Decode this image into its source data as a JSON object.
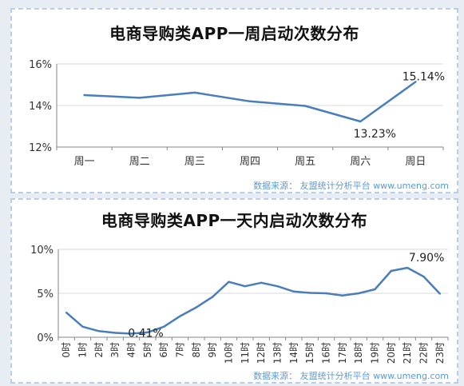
{
  "chart_data": [
    {
      "type": "line",
      "title": "电商导购类APP一周启动次数分布",
      "categories": [
        "周一",
        "周二",
        "周三",
        "周四",
        "周五",
        "周六",
        "周日"
      ],
      "values": [
        14.5,
        14.37,
        14.62,
        14.2,
        13.98,
        13.23,
        15.14
      ],
      "yticks": [
        "12%",
        "14%",
        "16%"
      ],
      "ylim": [
        12,
        16
      ],
      "data_labels": [
        {
          "index": 5,
          "text": "13.23%"
        },
        {
          "index": 6,
          "text": "15.14%"
        }
      ],
      "source": "数据来源：  友盟统计分析平台 www.umeng.com",
      "color": "#4a7ebb"
    },
    {
      "type": "line",
      "title": "电商导购类APP一天内启动次数分布",
      "categories": [
        "0时",
        "1时",
        "2时",
        "3时",
        "4时",
        "5时",
        "6时",
        "7时",
        "8时",
        "9时",
        "10时",
        "11时",
        "12时",
        "13时",
        "14时",
        "15时",
        "16时",
        "17时",
        "18时",
        "19时",
        "20时",
        "21时",
        "22时",
        "23时"
      ],
      "values": [
        2.8,
        1.2,
        0.7,
        0.5,
        0.41,
        0.55,
        1.2,
        2.4,
        3.4,
        4.6,
        6.3,
        5.8,
        6.2,
        5.8,
        5.2,
        5.05,
        5.0,
        4.75,
        5.0,
        5.45,
        7.55,
        7.9,
        6.9,
        4.95
      ],
      "yticks": [
        "0%",
        "5%",
        "10%"
      ],
      "ylim": [
        0,
        10
      ],
      "data_labels": [
        {
          "index": 4,
          "text": "0.41%"
        },
        {
          "index": 21,
          "text": "7.90%"
        }
      ],
      "source": "数据来源：  友盟统计分析平台 www.umeng.com",
      "color": "#4a7ebb"
    }
  ]
}
